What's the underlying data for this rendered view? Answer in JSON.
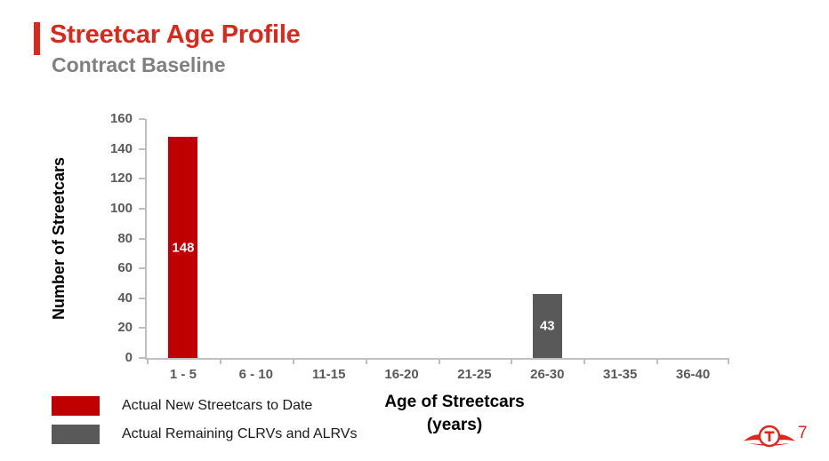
{
  "header": {
    "title": "Streetcar Age Profile",
    "subtitle": "Contract Baseline"
  },
  "chart_data": {
    "type": "bar",
    "title": "",
    "categories": [
      "1 - 5",
      "6 - 10",
      "11-15",
      "16-20",
      "21-25",
      "26-30",
      "31-35",
      "36-40"
    ],
    "series": [
      {
        "name": "Actual New Streetcars to Date",
        "color": "#C00000",
        "values": [
          148,
          0,
          0,
          0,
          0,
          0,
          0,
          0
        ]
      },
      {
        "name": "Actual Remaining CLRVs and ALRVs",
        "color": "#595959",
        "values": [
          0,
          0,
          0,
          0,
          0,
          43,
          0,
          0
        ]
      }
    ],
    "xlabel": "Age of Streetcars (years)",
    "xlabel_lines": [
      "Age of Streetcars",
      "(years)"
    ],
    "ylabel": "Number of Streetcars",
    "ylim": [
      0,
      160
    ],
    "ytick_step": 20,
    "yticks": [
      0,
      20,
      40,
      60,
      80,
      100,
      120,
      140,
      160
    ],
    "grid": false,
    "legend_position": "bottom-left",
    "show_bar_value_labels": true,
    "bar_value_label_color": "#FFFFFF"
  },
  "legend": {
    "items": [
      {
        "label": "Actual New Streetcars to Date",
        "color": "#C00000"
      },
      {
        "label": "Actual Remaining CLRVs and ALRVs",
        "color": "#595959"
      }
    ]
  },
  "footer": {
    "page_number": "7",
    "logo": "ttc-logo"
  },
  "colors": {
    "title_red": "#DA291C",
    "bar_red": "#C00000",
    "bar_gray": "#595959",
    "subtitle_gray": "#808080",
    "axis_line": "#BFBFBF",
    "tick_label_gray": "#595959",
    "axis_title_black": "#000000",
    "bar_value_white": "#FFFFFF"
  }
}
